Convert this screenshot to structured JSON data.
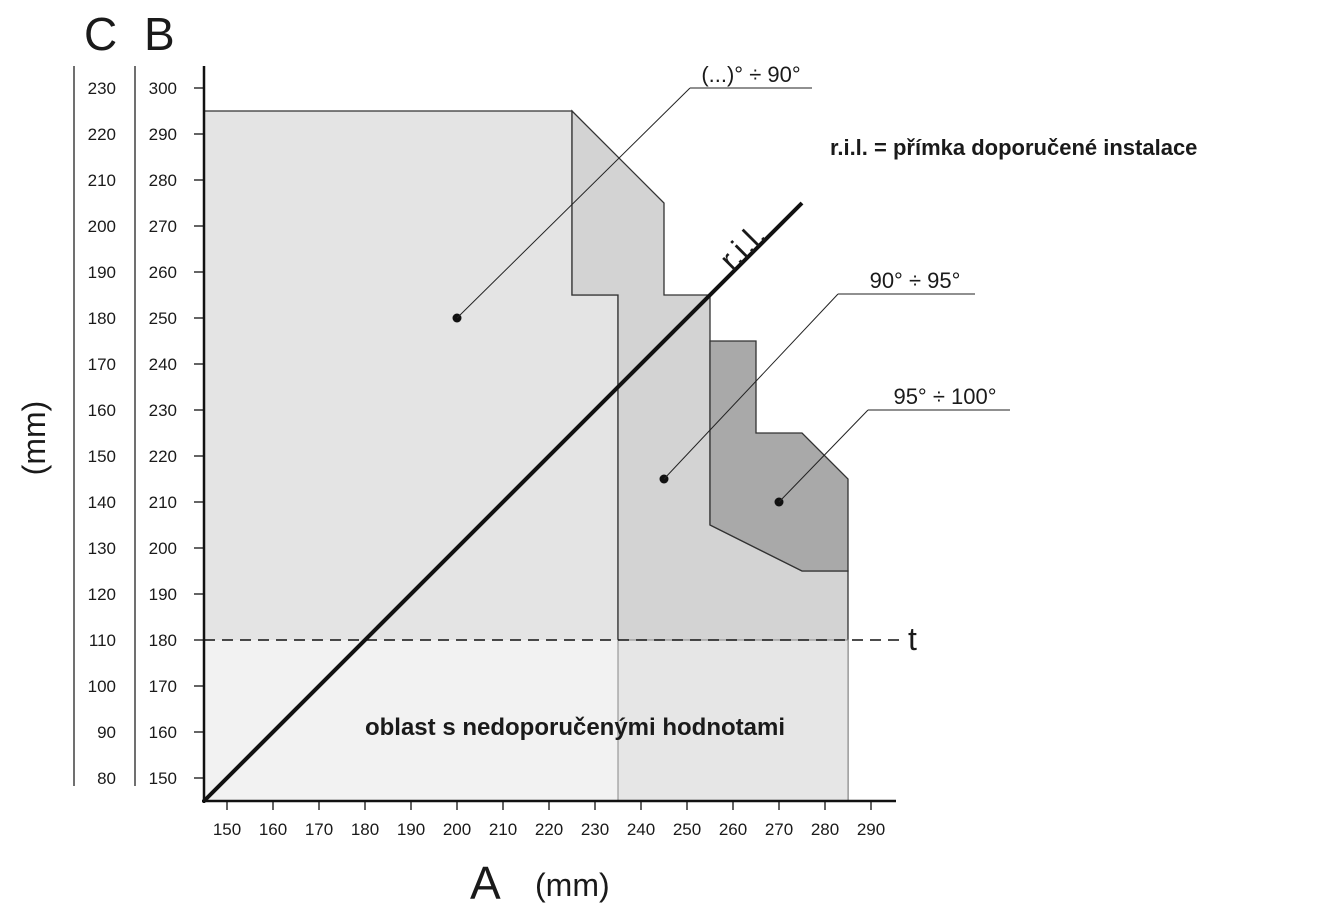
{
  "chart_data": {
    "type": "area",
    "x_axis": {
      "letter": "A",
      "unit": "(mm)",
      "range": [
        145,
        295
      ],
      "ticks": [
        150,
        160,
        170,
        180,
        190,
        200,
        210,
        220,
        230,
        240,
        250,
        260,
        270,
        280,
        290
      ]
    },
    "y_axis_B": {
      "letter": "B",
      "range": [
        145,
        305
      ],
      "ticks": [
        150,
        160,
        170,
        180,
        190,
        200,
        210,
        220,
        230,
        240,
        250,
        260,
        270,
        280,
        290,
        300
      ]
    },
    "y_axis_C": {
      "letter": "C",
      "ticks": [
        80,
        90,
        100,
        110,
        120,
        130,
        140,
        150,
        160,
        170,
        180,
        190,
        200,
        210,
        220,
        230
      ]
    },
    "y_unit": "(mm)",
    "legend_text": "r.i.l. = přímka doporučené instalace",
    "ril": {
      "label": "r.i.l.",
      "from": [
        145,
        145
      ],
      "to": [
        275,
        275
      ]
    },
    "threshold": {
      "label": "t",
      "y": 180
    },
    "non_recommended_label": "oblast s nedoporučenými hodnotami",
    "regions": [
      {
        "name": "(...)° ÷ 90°",
        "color": "#e4e4e4",
        "polygon": [
          [
            145,
            295
          ],
          [
            225,
            295
          ],
          [
            225,
            255
          ],
          [
            235,
            255
          ],
          [
            235,
            145
          ],
          [
            145,
            145
          ]
        ],
        "marker": [
          200,
          250
        ]
      },
      {
        "name": "90° ÷ 95°",
        "color": "#d3d3d3",
        "polygon": [
          [
            225,
            295
          ],
          [
            245,
            275
          ],
          [
            245,
            255
          ],
          [
            255,
            255
          ],
          [
            255,
            205
          ],
          [
            275,
            195
          ],
          [
            285,
            195
          ],
          [
            285,
            145
          ],
          [
            235,
            145
          ],
          [
            235,
            255
          ],
          [
            225,
            255
          ]
        ],
        "marker": [
          245,
          215
        ]
      },
      {
        "name": "95° ÷ 100°",
        "color": "#a9a9a9",
        "polygon": [
          [
            255,
            245
          ],
          [
            265,
            245
          ],
          [
            265,
            225
          ],
          [
            275,
            225
          ],
          [
            285,
            215
          ],
          [
            285,
            195
          ],
          [
            275,
            195
          ],
          [
            255,
            205
          ]
        ],
        "marker": [
          270,
          210
        ]
      }
    ],
    "region_labels": [
      {
        "text": "(...)° ÷ 90°",
        "line_start": [
          200,
          250
        ]
      },
      {
        "text": "90° ÷ 95°",
        "line_start": [
          245,
          215
        ]
      },
      {
        "text": "95° ÷ 100°",
        "line_start": [
          270,
          210
        ]
      }
    ]
  }
}
